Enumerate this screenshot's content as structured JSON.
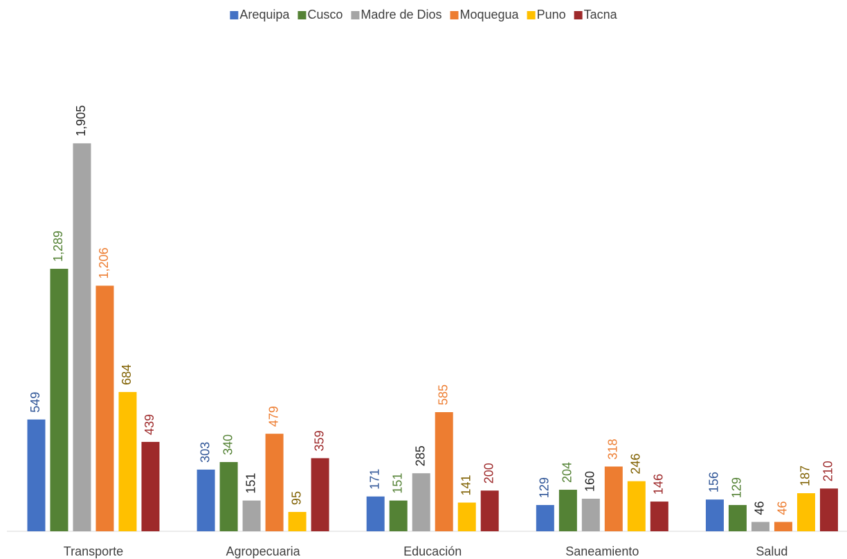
{
  "chart_data": {
    "type": "bar",
    "categories": [
      "Transporte",
      "Agropecuaria",
      "Educación",
      "Saneamiento",
      "Salud"
    ],
    "series": [
      {
        "name": "Arequipa",
        "color": "#4472c4",
        "label_color": "#2f5597",
        "values": [
          549,
          303,
          171,
          129,
          156
        ],
        "value_labels": [
          "549",
          "303",
          "171",
          "129",
          "156"
        ]
      },
      {
        "name": "Cusco",
        "color": "#548235",
        "label_color": "#548235",
        "values": [
          1289,
          340,
          151,
          204,
          129
        ],
        "value_labels": [
          "1,289",
          "340",
          "151",
          "204",
          "129"
        ]
      },
      {
        "name": "Madre de Dios",
        "color": "#a5a5a5",
        "label_color": "#262626",
        "values": [
          1905,
          151,
          285,
          160,
          46
        ],
        "value_labels": [
          "1,905",
          "151",
          "285",
          "160",
          "46"
        ]
      },
      {
        "name": "Moquegua",
        "color": "#ed7d31",
        "label_color": "#ed7d31",
        "values": [
          1206,
          479,
          585,
          318,
          46
        ],
        "value_labels": [
          "1,206",
          "479",
          "585",
          "318",
          "46"
        ]
      },
      {
        "name": "Puno",
        "color": "#ffc000",
        "label_color": "#7f6000",
        "values": [
          684,
          95,
          141,
          246,
          187
        ],
        "value_labels": [
          "684",
          "95",
          "141",
          "246",
          "187"
        ]
      },
      {
        "name": "Tacna",
        "color": "#9e2a2b",
        "label_color": "#9e2a2b",
        "values": [
          439,
          359,
          200,
          146,
          210
        ],
        "value_labels": [
          "439",
          "359",
          "200",
          "146",
          "210"
        ]
      }
    ],
    "ylim": [
      0,
      2000
    ],
    "legend": "top"
  }
}
